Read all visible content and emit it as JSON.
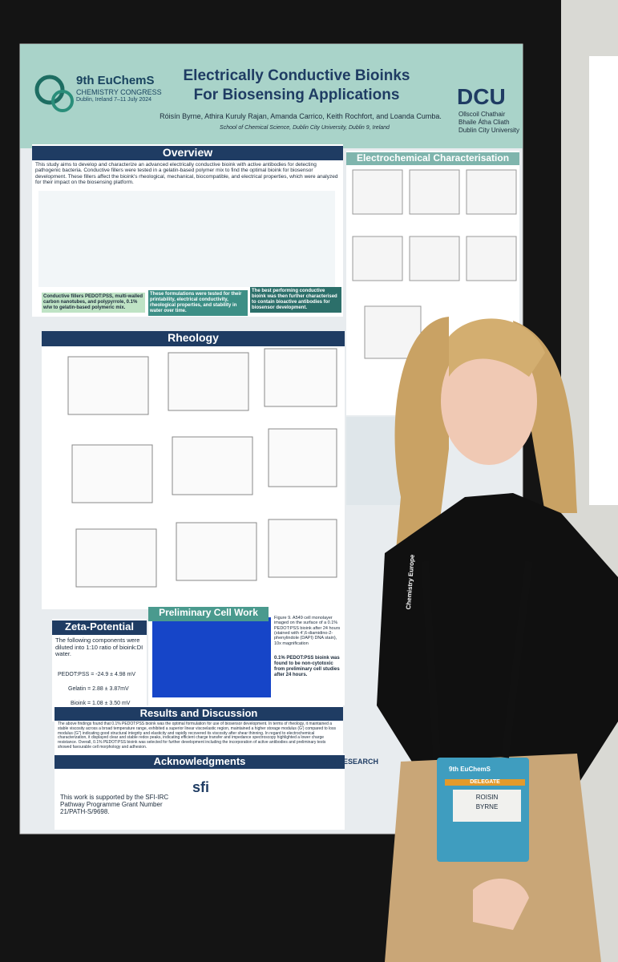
{
  "poster": {
    "congress": {
      "name": "9th EuChemS",
      "sub": "CHEMISTRY CONGRESS",
      "place": "Dublin, Ireland 7–11 July 2024"
    },
    "title": [
      "Electrically Conductive Bioinks",
      "For Biosensing Applications"
    ],
    "authors": "Róisín Byrne, Athira Kuruly Rajan, Amanda Carrico, Keith Rochfort, and Loanda Cumba.",
    "affiliation": "School of Chemical Science, Dublin City University, Dublin 9, Ireland",
    "university": {
      "logo": "DCU",
      "lines": [
        "Ollscoil Chathair",
        "Bhaile Átha Cliath",
        "Dublin City University"
      ]
    },
    "overview": {
      "heading": "Overview",
      "text": "This study aims to develop and characterize an advanced electrically conductive bioink with active antibodies for detecting pathogenic bacteria. Conductive fillers were tested in a gelatin-based polymer mix to find the optimal bioink for biosensor development. These fillers affect the bioink's rheological, mechanical, biocompatible, and electrical properties, which were analyzed for their impact on the biosensing platform.",
      "steps": [
        "Conductive fillers PEDOT:PSS, multi-walled carbon nanotubes, and polypyrrole, 0.1% w/w to gelatin-based polymeric mix.",
        "These formulations were tested for their printability, electrical conductivity, rheological properties, and stability in water over time.",
        "The best performing conductive bioink was then further characterised to contain bioactive antibodies for biosensor development."
      ]
    },
    "electrochem": {
      "heading": "Electrochemical Characterisation"
    },
    "rheology": {
      "heading": "Rheology"
    },
    "cell": {
      "heading": "Preliminary Cell Work",
      "text": "Figure 9. A549 cell monolayer imaged on the surface of a 0.1% PEDOT:PSS bioink after 24 hours (stained with 4',6-diamidino-2-phenylindole (DAPI) DNA stain), 10x magnification",
      "result": "0.1% PEDOT:PSS bioink was found to be non-cytotoxic from preliminary cell studies after 24 hours."
    },
    "zeta": {
      "heading": "Zeta-Potential",
      "text": "The following components were diluted into 1:10 ratio of bioink:DI water.",
      "values": [
        "PEDOT:PSS = -24.9 ± 4.98 mV",
        "Gelatin = 2.88 ± 3.87mV",
        "Bioink = 1.08 ± 3.50 mV"
      ]
    },
    "results": {
      "heading": "Results and Discussion",
      "text": "The above findings found that 0.1% PEDOT:PSS bioink was the optimal formulation for use of biosensor development. In terms of rheology, it maintained a stable viscosity across a broad temperature range, exhibited a superior linear viscoelastic region, maintained a higher storage modulus (G') compared to loss modulus (G'') indicating good structural integrity and elasticity and rapidly recovered its viscosity after shear thinning. In regard to electrochemical characterization, it displayed clear and stable redox peaks, indicating efficient charge transfer and impedance spectroscopy highlighted a lower charge resistance. Overall, 0.1% PEDOT:PSS bioink was selected for further development including the incorporation of active antibodies and preliminary tests showed favourable cell morphology and adhesion."
    },
    "ack": {
      "heading": "Acknowledgments",
      "text": "This work is supported by the SFI-IRC Pathway Programme Grant Number 21/PATH-S/9698.",
      "sponsors": [
        "sfi",
        "IRISH RESEARCH"
      ]
    }
  },
  "badge": {
    "event": "9th EuChemS",
    "role": "DELEGATE",
    "name": [
      "ROISIN",
      "BYRNE"
    ]
  },
  "lanyard": "Chemistry Europe"
}
